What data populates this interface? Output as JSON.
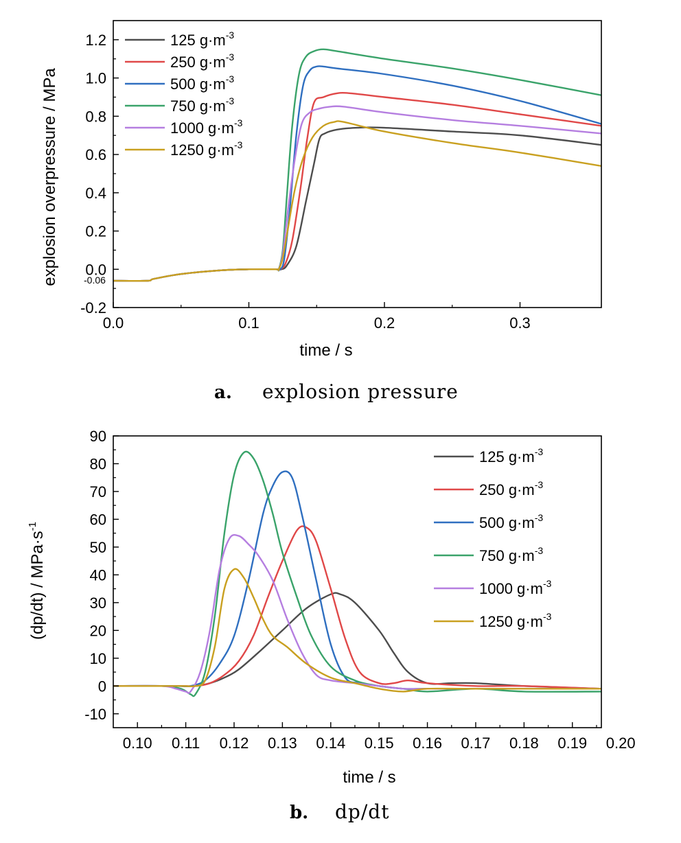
{
  "colors": {
    "125 g·m-3": "#4d4d4d",
    "250 g·m-3": "#e04848",
    "500 g·m-3": "#2f6fc0",
    "750 g·m-3": "#3aa36a",
    "1000 g·m-3": "#b57ee0",
    "1250 g·m-3": "#c9a020"
  },
  "chart_data": [
    {
      "type": "line",
      "panel": "a",
      "caption_letter": "a.",
      "caption_text": "explosion pressure",
      "xlabel": "time / s",
      "ylabel": "explosion overpressure / MPa",
      "xlim": [
        0.0,
        0.36
      ],
      "ylim": [
        -0.2,
        1.3
      ],
      "xticks": [
        "0.0",
        "0.1",
        "0.2",
        "0.3"
      ],
      "yticks": [
        "-0.2",
        "0.0",
        "0.2",
        "0.4",
        "0.6",
        "0.8",
        "1.0",
        "1.2"
      ],
      "annotation": "-0.06",
      "legend_position": "top-left",
      "grid": false,
      "series": [
        {
          "name": "125 g·m",
          "sup": "-3",
          "color_key": "125 g·m-3",
          "x": [
            0.0,
            0.025,
            0.03,
            0.05,
            0.08,
            0.1,
            0.12,
            0.124,
            0.128,
            0.135,
            0.142,
            0.148,
            0.152,
            0.156,
            0.165,
            0.18,
            0.2,
            0.25,
            0.3,
            0.36
          ],
          "y": [
            -0.06,
            -0.06,
            -0.05,
            -0.025,
            -0.005,
            0.0,
            0.0,
            0.0,
            0.02,
            0.12,
            0.35,
            0.55,
            0.68,
            0.71,
            0.73,
            0.74,
            0.74,
            0.72,
            0.7,
            0.65
          ]
        },
        {
          "name": "250 g·m",
          "sup": "-3",
          "color_key": "250 g·m-3",
          "x": [
            0.0,
            0.025,
            0.03,
            0.05,
            0.08,
            0.1,
            0.12,
            0.123,
            0.127,
            0.132,
            0.138,
            0.143,
            0.148,
            0.155,
            0.165,
            0.175,
            0.2,
            0.25,
            0.3,
            0.36
          ],
          "y": [
            -0.06,
            -0.06,
            -0.05,
            -0.025,
            -0.005,
            0.0,
            0.0,
            0.0,
            0.03,
            0.15,
            0.42,
            0.68,
            0.87,
            0.9,
            0.92,
            0.92,
            0.9,
            0.86,
            0.81,
            0.75
          ]
        },
        {
          "name": "500 g·m",
          "sup": "-3",
          "color_key": "500 g·m-3",
          "x": [
            0.0,
            0.025,
            0.03,
            0.05,
            0.08,
            0.1,
            0.12,
            0.123,
            0.126,
            0.13,
            0.135,
            0.14,
            0.145,
            0.15,
            0.155,
            0.165,
            0.2,
            0.25,
            0.3,
            0.36
          ],
          "y": [
            -0.06,
            -0.06,
            -0.05,
            -0.025,
            -0.005,
            0.0,
            0.0,
            0.0,
            0.05,
            0.3,
            0.7,
            0.96,
            1.04,
            1.06,
            1.06,
            1.05,
            1.02,
            0.96,
            0.88,
            0.76
          ]
        },
        {
          "name": "750 g·m",
          "sup": "-3",
          "color_key": "750 g·m-3",
          "x": [
            0.0,
            0.025,
            0.03,
            0.05,
            0.08,
            0.1,
            0.12,
            0.122,
            0.125,
            0.128,
            0.132,
            0.137,
            0.142,
            0.148,
            0.155,
            0.165,
            0.2,
            0.25,
            0.3,
            0.36
          ],
          "y": [
            -0.06,
            -0.06,
            -0.05,
            -0.025,
            -0.005,
            0.0,
            0.0,
            0.0,
            0.1,
            0.38,
            0.75,
            1.02,
            1.11,
            1.14,
            1.15,
            1.14,
            1.1,
            1.05,
            0.99,
            0.91
          ]
        },
        {
          "name": "1000 g·m",
          "sup": "-3",
          "color_key": "1000 g·m-3",
          "x": [
            0.0,
            0.025,
            0.03,
            0.05,
            0.08,
            0.1,
            0.12,
            0.122,
            0.125,
            0.129,
            0.134,
            0.139,
            0.145,
            0.152,
            0.16,
            0.17,
            0.2,
            0.25,
            0.3,
            0.36
          ],
          "y": [
            -0.06,
            -0.06,
            -0.05,
            -0.025,
            -0.005,
            0.0,
            0.0,
            0.0,
            0.08,
            0.32,
            0.58,
            0.76,
            0.82,
            0.84,
            0.85,
            0.85,
            0.82,
            0.78,
            0.75,
            0.71
          ]
        },
        {
          "name": "1250 g·m",
          "sup": "-3",
          "color_key": "1250 g·m-3",
          "x": [
            0.0,
            0.025,
            0.03,
            0.05,
            0.08,
            0.1,
            0.12,
            0.122,
            0.125,
            0.129,
            0.134,
            0.14,
            0.147,
            0.155,
            0.163,
            0.17,
            0.2,
            0.25,
            0.3,
            0.36
          ],
          "y": [
            -0.06,
            -0.06,
            -0.05,
            -0.025,
            -0.005,
            0.0,
            0.0,
            0.0,
            0.06,
            0.22,
            0.42,
            0.58,
            0.69,
            0.75,
            0.77,
            0.77,
            0.72,
            0.66,
            0.61,
            0.54
          ]
        }
      ]
    },
    {
      "type": "line",
      "panel": "b",
      "caption_letter": "b.",
      "caption_text": "dp/dt",
      "xlabel": "time / s",
      "ylabel": "(dp/dt) / MPa·s",
      "ylabel_sup": "-1",
      "xlim": [
        0.095,
        0.196
      ],
      "ylim": [
        -15,
        90
      ],
      "xticks": [
        "0.10",
        "0.11",
        "0.12",
        "0.13",
        "0.14",
        "0.15",
        "0.16",
        "0.17",
        "0.18",
        "0.19",
        "0.20"
      ],
      "yticks": [
        "-10",
        "0",
        "10",
        "20",
        "30",
        "40",
        "50",
        "60",
        "70",
        "80",
        "90"
      ],
      "legend_position": "top-right",
      "grid": false,
      "series": [
        {
          "name": "125 g·m",
          "sup": "-3",
          "color_key": "125 g·m-3",
          "x": [
            0.095,
            0.105,
            0.109,
            0.112,
            0.115,
            0.118,
            0.121,
            0.125,
            0.13,
            0.135,
            0.14,
            0.142,
            0.145,
            0.15,
            0.153,
            0.156,
            0.16,
            0.165,
            0.17,
            0.18,
            0.196
          ],
          "y": [
            0,
            0,
            0,
            0,
            1,
            3,
            6,
            12,
            20,
            28,
            33,
            33,
            30,
            20,
            12,
            5,
            1,
            1,
            1,
            0,
            -1
          ]
        },
        {
          "name": "250 g·m",
          "sup": "-3",
          "color_key": "250 g·m-3",
          "x": [
            0.095,
            0.105,
            0.109,
            0.112,
            0.115,
            0.118,
            0.121,
            0.124,
            0.127,
            0.13,
            0.133,
            0.135,
            0.137,
            0.14,
            0.143,
            0.146,
            0.15,
            0.153,
            0.156,
            0.16,
            0.17,
            0.18,
            0.196
          ],
          "y": [
            0,
            0,
            0,
            0,
            1,
            4,
            9,
            18,
            32,
            45,
            56,
            57,
            52,
            35,
            17,
            5,
            1,
            1,
            2,
            1,
            0,
            0,
            -1
          ]
        },
        {
          "name": "500 g·m",
          "sup": "-3",
          "color_key": "500 g·m-3",
          "x": [
            0.095,
            0.105,
            0.108,
            0.111,
            0.114,
            0.117,
            0.12,
            0.123,
            0.126,
            0.128,
            0.13,
            0.132,
            0.134,
            0.137,
            0.14,
            0.143,
            0.146,
            0.15,
            0.155,
            0.16,
            0.17,
            0.18,
            0.196
          ],
          "y": [
            0,
            0,
            0,
            0,
            2,
            8,
            18,
            38,
            62,
            72,
            77,
            75,
            62,
            38,
            15,
            3,
            1,
            0,
            -1,
            -1,
            -1,
            -1,
            -1
          ]
        },
        {
          "name": "750 g·m",
          "sup": "-3",
          "color_key": "750 g·m-3",
          "x": [
            0.095,
            0.105,
            0.109,
            0.111,
            0.112,
            0.114,
            0.116,
            0.118,
            0.12,
            0.122,
            0.124,
            0.126,
            0.128,
            0.13,
            0.133,
            0.136,
            0.14,
            0.145,
            0.15,
            0.155,
            0.16,
            0.17,
            0.18,
            0.196
          ],
          "y": [
            0,
            0,
            -1,
            -3,
            -3,
            5,
            25,
            55,
            76,
            84,
            82,
            74,
            62,
            48,
            32,
            18,
            7,
            2,
            0,
            -1,
            -2,
            -1,
            -2,
            -2
          ]
        },
        {
          "name": "1000 g·m",
          "sup": "-3",
          "color_key": "1000 g·m-3",
          "x": [
            0.095,
            0.105,
            0.108,
            0.11,
            0.111,
            0.113,
            0.115,
            0.117,
            0.119,
            0.121,
            0.123,
            0.125,
            0.128,
            0.131,
            0.134,
            0.137,
            0.14,
            0.145,
            0.15,
            0.155,
            0.16,
            0.17,
            0.18,
            0.196
          ],
          "y": [
            0,
            0,
            -1,
            -2,
            -2,
            5,
            20,
            42,
            53,
            54,
            51,
            47,
            38,
            24,
            12,
            4,
            2,
            1,
            0,
            -1,
            -1,
            -1,
            -1,
            -1
          ]
        },
        {
          "name": "1250 g·m",
          "sup": "-3",
          "color_key": "1250 g·m-3",
          "x": [
            0.095,
            0.105,
            0.109,
            0.112,
            0.114,
            0.116,
            0.118,
            0.12,
            0.122,
            0.124,
            0.126,
            0.128,
            0.131,
            0.135,
            0.14,
            0.145,
            0.15,
            0.155,
            0.16,
            0.17,
            0.18,
            0.196
          ],
          "y": [
            0,
            0,
            0,
            0,
            2,
            14,
            35,
            42,
            39,
            32,
            24,
            18,
            14,
            8,
            3,
            1,
            -1,
            -2,
            -1,
            -1,
            -1,
            -1
          ]
        }
      ]
    }
  ]
}
